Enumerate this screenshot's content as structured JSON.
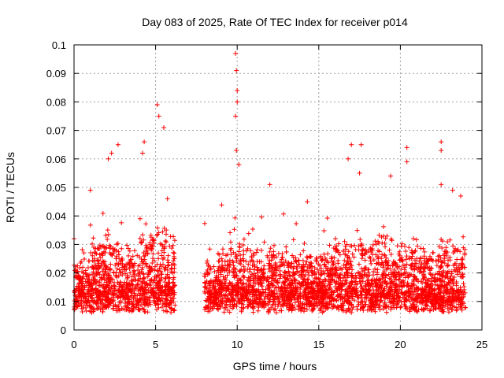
{
  "chart_data": {
    "type": "scatter",
    "title": "Day 083 of 2025, Rate Of TEC Index for receiver p014",
    "xlabel": "GPS time / hours",
    "ylabel": "ROTI / TECUs",
    "xlim": [
      0,
      25
    ],
    "ylim": [
      0,
      0.1
    ],
    "grid": true,
    "marker": "+",
    "color": "#ff0000",
    "x_ticks": [
      0,
      5,
      10,
      15,
      20,
      25
    ],
    "x_tick_labels": [
      "0",
      "5",
      "10",
      "15",
      "20",
      "25"
    ],
    "y_ticks": [
      0,
      0.01,
      0.02,
      0.03,
      0.04,
      0.05,
      0.06,
      0.07,
      0.08,
      0.09,
      0.1
    ],
    "y_tick_labels": [
      "0",
      "0.01",
      "0.02",
      "0.03",
      "0.04",
      "0.05",
      "0.06",
      "0.07",
      "0.08",
      "0.09",
      "0.1"
    ],
    "data_gap_hours": [
      6.2,
      8.0
    ],
    "series": [
      {
        "name": "ROTI",
        "notable_points": [
          {
            "x": 0.0,
            "y": 0.032
          },
          {
            "x": 1.0,
            "y": 0.049
          },
          {
            "x": 2.1,
            "y": 0.06
          },
          {
            "x": 2.3,
            "y": 0.062
          },
          {
            "x": 2.7,
            "y": 0.065
          },
          {
            "x": 4.2,
            "y": 0.062
          },
          {
            "x": 4.3,
            "y": 0.066
          },
          {
            "x": 5.1,
            "y": 0.079
          },
          {
            "x": 5.2,
            "y": 0.075
          },
          {
            "x": 5.5,
            "y": 0.071
          },
          {
            "x": 9.9,
            "y": 0.097
          },
          {
            "x": 9.95,
            "y": 0.091
          },
          {
            "x": 10.0,
            "y": 0.084
          },
          {
            "x": 10.0,
            "y": 0.08
          },
          {
            "x": 9.9,
            "y": 0.075
          },
          {
            "x": 9.95,
            "y": 0.063
          },
          {
            "x": 10.1,
            "y": 0.058
          },
          {
            "x": 12.0,
            "y": 0.051
          },
          {
            "x": 14.3,
            "y": 0.045
          },
          {
            "x": 16.8,
            "y": 0.06
          },
          {
            "x": 17.0,
            "y": 0.065
          },
          {
            "x": 17.6,
            "y": 0.065
          },
          {
            "x": 17.5,
            "y": 0.055
          },
          {
            "x": 19.4,
            "y": 0.054
          },
          {
            "x": 20.4,
            "y": 0.064
          },
          {
            "x": 20.4,
            "y": 0.059
          },
          {
            "x": 22.5,
            "y": 0.066
          },
          {
            "x": 22.5,
            "y": 0.063
          },
          {
            "x": 22.5,
            "y": 0.051
          },
          {
            "x": 23.2,
            "y": 0.049
          },
          {
            "x": 23.7,
            "y": 0.047
          }
        ]
      }
    ]
  }
}
